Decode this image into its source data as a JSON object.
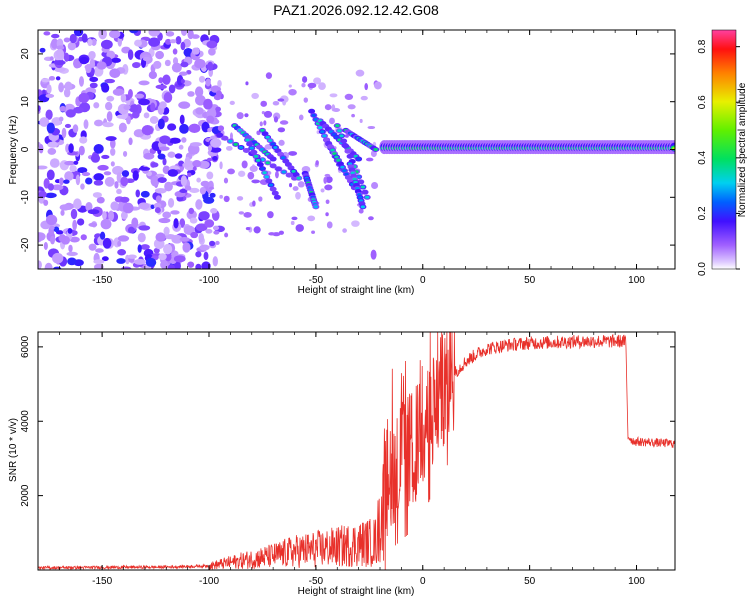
{
  "title": "PAZ1.2026.092.12.42.G08",
  "chart_data": [
    {
      "type": "heatmap",
      "xlabel": "Height of straight line (km)",
      "ylabel": "Frequency (Hz)",
      "xlim": [
        -180,
        118
      ],
      "ylim": [
        -25,
        25
      ],
      "xticks": [
        -150,
        -100,
        -50,
        0,
        50,
        100
      ],
      "yticks": [
        -20,
        -10,
        0,
        10,
        20
      ],
      "colorbar": {
        "label": "Normalized spectral amplitude",
        "range": [
          0,
          0.86
        ],
        "ticks": [
          0.0,
          0.2,
          0.4,
          0.6,
          0.8
        ]
      },
      "regions": [
        {
          "description": "diffuse noise",
          "x_range": [
            -180,
            -95
          ],
          "freq_range": [
            -25,
            25
          ],
          "amplitude": 0.05
        },
        {
          "description": "multipath fringes",
          "x_range": [
            -95,
            -15
          ],
          "freq_range": [
            -12,
            10
          ],
          "amplitude": 0.4
        },
        {
          "description": "carrier line",
          "x_range": [
            -15,
            118
          ],
          "freq_range": [
            -1,
            2
          ],
          "amplitude": 0.5
        }
      ]
    },
    {
      "type": "line",
      "xlabel": "Height of straight line (km)",
      "ylabel": "SNR (10 * v/v)",
      "xlim": [
        -180,
        118
      ],
      "ylim": [
        0,
        6400
      ],
      "xticks": [
        -150,
        -100,
        -50,
        0,
        50,
        100
      ],
      "yticks": [
        2000,
        4000,
        6000
      ],
      "color": "#e8302a",
      "series": [
        {
          "name": "SNR",
          "x": [
            -180,
            -150,
            -120,
            -100,
            -85,
            -70,
            -60,
            -50,
            -40,
            -30,
            -22,
            -18,
            -16,
            -12,
            -8,
            -4,
            0,
            5,
            10,
            15,
            20,
            25,
            30,
            40,
            50,
            60,
            70,
            80,
            90,
            95,
            96,
            98,
            100,
            105,
            110,
            118
          ],
          "values": [
            60,
            70,
            80,
            110,
            250,
            380,
            500,
            560,
            620,
            700,
            760,
            1800,
            2700,
            2900,
            3100,
            3300,
            3700,
            4300,
            4900,
            5300,
            5600,
            5800,
            5950,
            6050,
            6100,
            6120,
            6140,
            6150,
            6150,
            6150,
            3600,
            3480,
            3450,
            3440,
            3420,
            3400
          ]
        }
      ]
    }
  ]
}
